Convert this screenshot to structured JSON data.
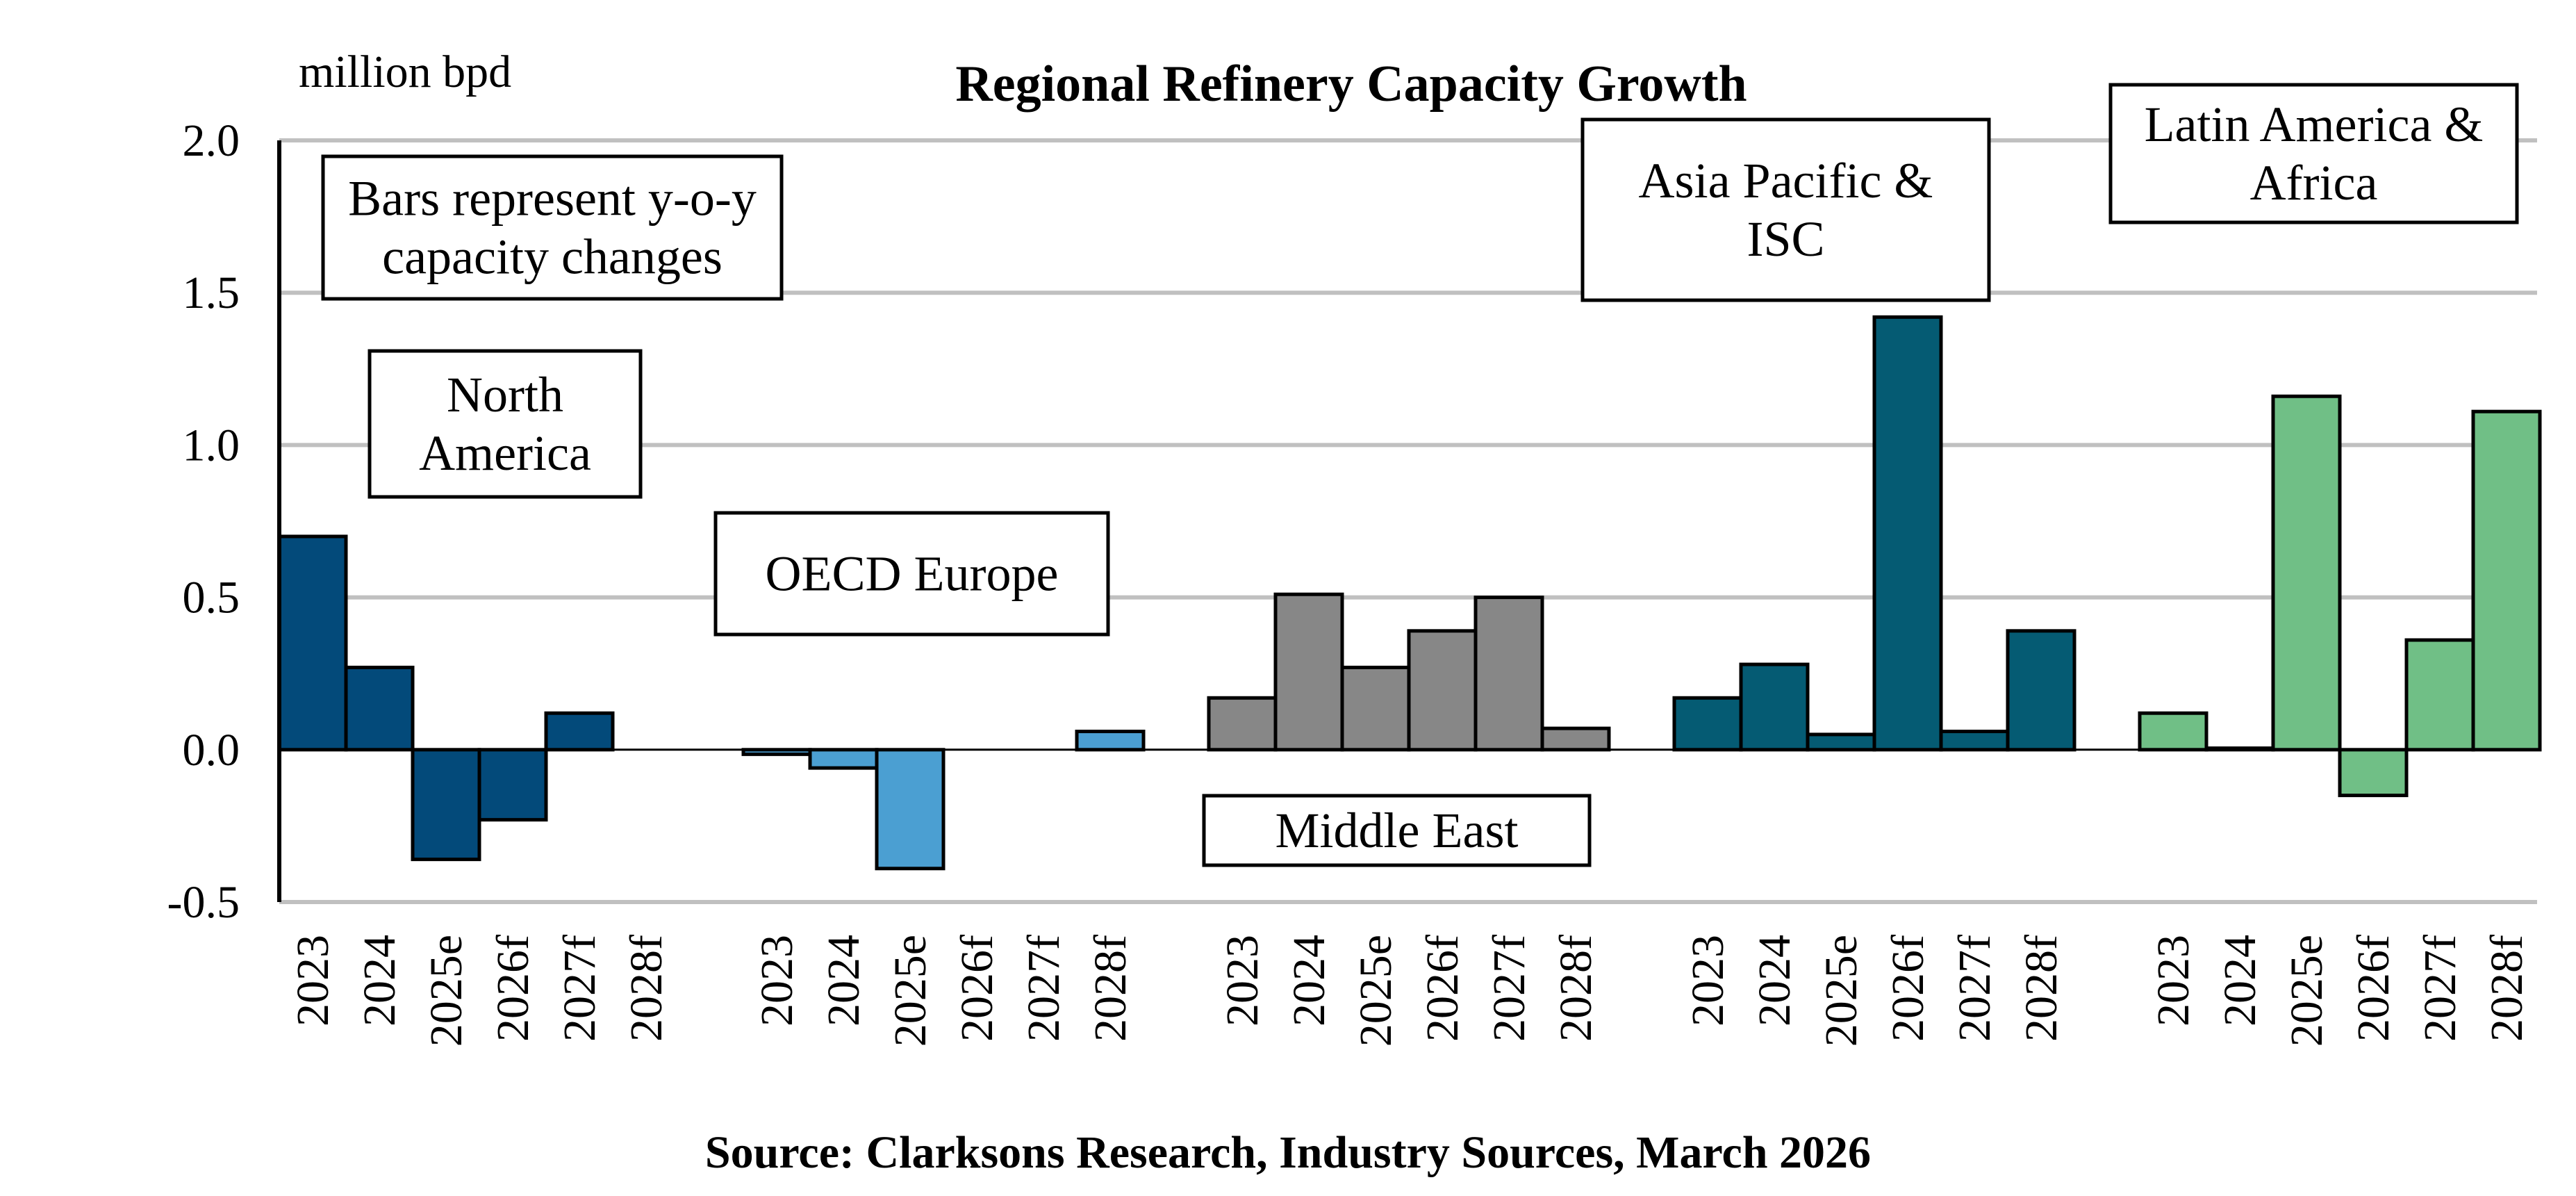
{
  "chart_data": {
    "type": "bar",
    "title": "Regional Refinery Capacity Growth",
    "ylabel": "million bpd",
    "xlabel": "",
    "ylim": [
      -0.5,
      2.0
    ],
    "yticks": [
      "2.0",
      "1.5",
      "1.0",
      "0.5",
      "0.0",
      "-0.5"
    ],
    "grid": true,
    "note": "Bars represent y-o-y capacity changes",
    "source": "Source: Clarksons Research, Industry Sources, March 2026",
    "categories": [
      "2023",
      "2024",
      "2025e",
      "2026f",
      "2027f",
      "2028f"
    ],
    "series": [
      {
        "name": "North America",
        "label_lines": [
          "North",
          "America"
        ],
        "color": "#034a7a",
        "values": [
          0.7,
          0.27,
          -0.36,
          -0.23,
          0.12,
          0.0
        ]
      },
      {
        "name": "OECD Europe",
        "label_lines": [
          "OECD Europe"
        ],
        "color": "#4b9fd2",
        "values": [
          -0.015,
          -0.06,
          -0.39,
          0.0,
          0.0,
          0.06
        ]
      },
      {
        "name": "Middle East",
        "label_lines": [
          "Middle East"
        ],
        "color": "#878787",
        "values": [
          0.17,
          0.51,
          0.27,
          0.39,
          0.5,
          0.07
        ]
      },
      {
        "name": "Asia Pacific & ISC",
        "label_lines": [
          "Asia Pacific &",
          "ISC"
        ],
        "color": "#055b73",
        "values": [
          0.17,
          0.28,
          0.05,
          1.42,
          0.06,
          0.39
        ]
      },
      {
        "name": "Latin America & Africa",
        "label_lines": [
          "Latin America &",
          "Africa"
        ],
        "color": "#70bf86",
        "values": [
          0.12,
          0.005,
          1.16,
          -0.15,
          0.36,
          1.11
        ]
      }
    ]
  }
}
